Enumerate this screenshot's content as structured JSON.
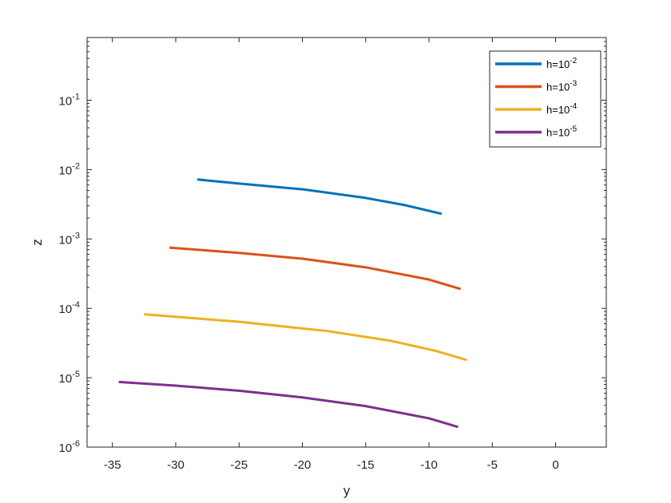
{
  "chart_data": {
    "type": "line",
    "title": "",
    "xlabel": "y",
    "ylabel": "z",
    "xscale": "linear",
    "yscale": "log",
    "xlim": [
      -37,
      4
    ],
    "ylim": [
      1e-06,
      0.8
    ],
    "x_ticks": [
      -35,
      -30,
      -25,
      -20,
      -15,
      -10,
      -5,
      0
    ],
    "x_tick_labels": [
      "-35",
      "-30",
      "-25",
      "-20",
      "-15",
      "-10",
      "-5",
      "0"
    ],
    "y_ticks": [
      {
        "value": 1e-06,
        "base": "10",
        "exp": "-6"
      },
      {
        "value": 1e-05,
        "base": "10",
        "exp": "-5"
      },
      {
        "value": 0.0001,
        "base": "10",
        "exp": "-4"
      },
      {
        "value": 0.001,
        "base": "10",
        "exp": "-3"
      },
      {
        "value": 0.01,
        "base": "10",
        "exp": "-2"
      },
      {
        "value": 0.1,
        "base": "10",
        "exp": "-1"
      }
    ],
    "grid": false,
    "legend_position": "top-right",
    "series": [
      {
        "name_base": "h=10",
        "name_exp": "-2",
        "color": "#0072BD",
        "points": [
          [
            -28.3,
            0.0072
          ],
          [
            -25,
            0.0063
          ],
          [
            -20,
            0.0052
          ],
          [
            -15,
            0.0039
          ],
          [
            -12,
            0.0031
          ],
          [
            -9,
            0.0023
          ]
        ]
      },
      {
        "name_base": "h=10",
        "name_exp": "-3",
        "color": "#D95319",
        "points": [
          [
            -30.5,
            0.00075
          ],
          [
            -25,
            0.00063
          ],
          [
            -20,
            0.00052
          ],
          [
            -15,
            0.00039
          ],
          [
            -10,
            0.00026
          ],
          [
            -7.5,
            0.00019
          ]
        ]
      },
      {
        "name_base": "h=10",
        "name_exp": "-4",
        "color": "#EDB120",
        "points": [
          [
            -32.5,
            8.2e-05
          ],
          [
            -25,
            6.4e-05
          ],
          [
            -18,
            4.7e-05
          ],
          [
            -13,
            3.4e-05
          ],
          [
            -9.5,
            2.45e-05
          ],
          [
            -7,
            1.8e-05
          ]
        ]
      },
      {
        "name_base": "h=10",
        "name_exp": "-5",
        "color": "#7E2F8E",
        "points": [
          [
            -34.5,
            8.7e-06
          ],
          [
            -30,
            7.7e-06
          ],
          [
            -25,
            6.5e-06
          ],
          [
            -20,
            5.2e-06
          ],
          [
            -15,
            3.9e-06
          ],
          [
            -10,
            2.6e-06
          ],
          [
            -7.7,
            1.95e-06
          ]
        ]
      }
    ]
  }
}
